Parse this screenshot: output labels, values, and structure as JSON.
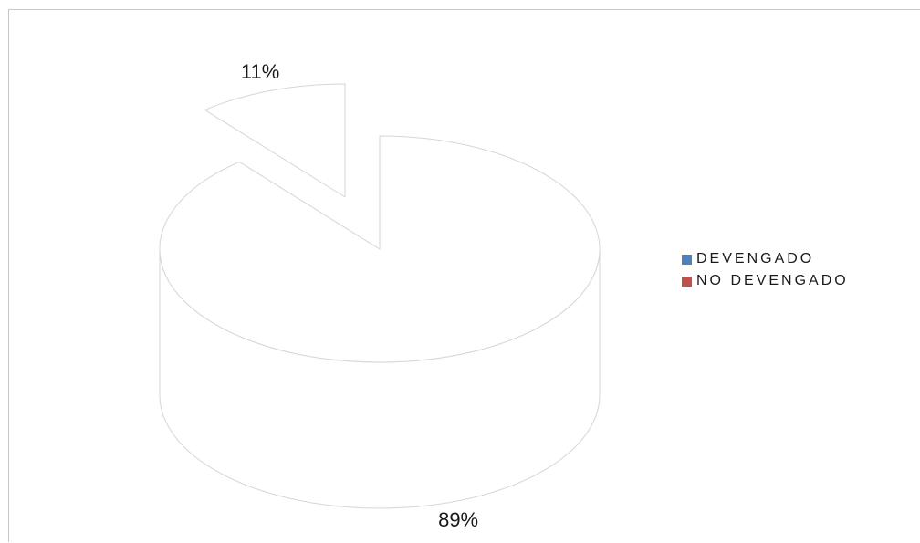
{
  "chart_data": {
    "type": "pie",
    "style": "3d-exploded",
    "title": "",
    "categories": [
      "DEVENGADO",
      "NO DEVENGADO"
    ],
    "values": [
      89,
      11
    ],
    "value_labels": [
      "89%",
      "11%"
    ],
    "colors": [
      "#4f81bd",
      "#c0504d"
    ],
    "legend": {
      "position": "right",
      "entries": [
        "DEVENGADO",
        "NO DEVENGADO"
      ]
    }
  }
}
